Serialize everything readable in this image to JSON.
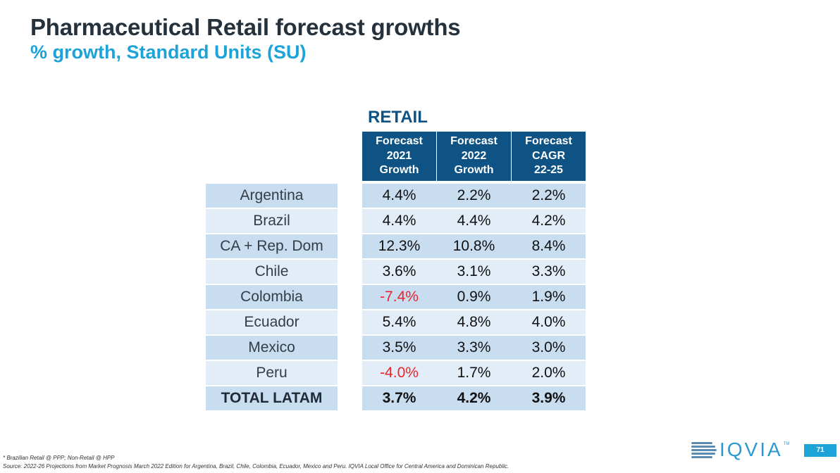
{
  "title": "Pharmaceutical Retail forecast growths",
  "subtitle": "% growth, Standard Units (SU)",
  "table": {
    "section_label": "RETAIL",
    "headers": [
      [
        "Forecast",
        "2021",
        "Growth"
      ],
      [
        "Forecast",
        "2022",
        "Growth"
      ],
      [
        "Forecast",
        "CAGR",
        "22-25"
      ]
    ],
    "rows": [
      {
        "country": "Argentina",
        "values": [
          "4.4%",
          "2.2%",
          "2.2%"
        ]
      },
      {
        "country": "Brazil",
        "values": [
          "4.4%",
          "4.4%",
          "4.2%"
        ]
      },
      {
        "country": "CA + Rep. Dom",
        "values": [
          "12.3%",
          "10.8%",
          "8.4%"
        ]
      },
      {
        "country": "Chile",
        "values": [
          "3.6%",
          "3.1%",
          "3.3%"
        ]
      },
      {
        "country": "Colombia",
        "values": [
          "-7.4%",
          "0.9%",
          "1.9%"
        ]
      },
      {
        "country": "Ecuador",
        "values": [
          "5.4%",
          "4.8%",
          "4.0%"
        ]
      },
      {
        "country": "Mexico",
        "values": [
          "3.5%",
          "3.3%",
          "3.0%"
        ]
      },
      {
        "country": "Peru",
        "values": [
          "-4.0%",
          "1.7%",
          "2.0%"
        ]
      }
    ],
    "total": {
      "country": "TOTAL LATAM",
      "values": [
        "3.7%",
        "4.2%",
        "3.9%"
      ]
    }
  },
  "colors": {
    "header_bg": "#0e5383",
    "row_dark": "#c9ddf1",
    "row_light": "#e3edf8",
    "negative": "#e8262a",
    "accent": "#1ea3d8"
  },
  "footnotes": [
    "* Brazilian Retail @ PPP; Non-Retail @ HPP",
    "Source: 2022-26 Projections from Market Prognosis March 2022 Edition for Argentina, Brazil, Chile, Colombia, Ecuador, Mexico and Peru. IQVIA Local Office for Central America and Dominican Republic."
  ],
  "logo": {
    "text": "IQVIA",
    "trademark": "TM"
  },
  "page_number": "71"
}
